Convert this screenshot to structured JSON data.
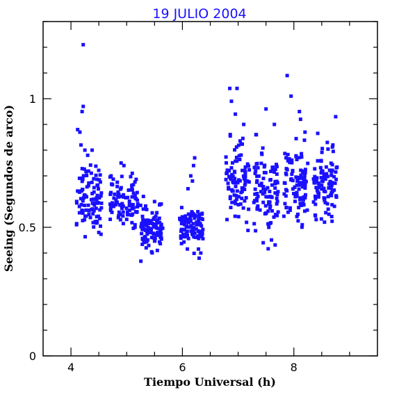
{
  "colors": {
    "marker": "#1a10ff",
    "title": "#1a10ff",
    "axis": "#000000",
    "background": "#ffffff"
  },
  "chart_data": {
    "type": "scatter",
    "title": "19 JULIO 2004",
    "xlabel": "Tiempo Universal (h)",
    "ylabel": "Seeing (Segundos de arco)",
    "xlim": [
      3.5,
      9.5
    ],
    "ylim": [
      0,
      1.3
    ],
    "xticks": [
      4,
      6,
      8
    ],
    "xtick_labels": [
      "4",
      "6",
      "8"
    ],
    "yticks": [
      0,
      0.5,
      1
    ],
    "ytick_labels": [
      "0",
      "0.5",
      "1"
    ],
    "grid": false,
    "legend": "none",
    "marker": "square",
    "clusters": [
      {
        "x_range": [
          4.1,
          4.55
        ],
        "y_mean": 0.62,
        "y_spread": 0.065,
        "n": 100,
        "extra": [
          [
            4.22,
            1.21
          ],
          [
            4.22,
            0.97
          ],
          [
            4.2,
            0.95
          ],
          [
            4.12,
            0.88
          ],
          [
            4.16,
            0.87
          ],
          [
            4.18,
            0.82
          ],
          [
            4.25,
            0.8
          ],
          [
            4.3,
            0.78
          ],
          [
            4.38,
            0.8
          ],
          [
            4.1,
            0.51
          ],
          [
            4.5,
            0.48
          ]
        ]
      },
      {
        "x_range": [
          4.7,
          5.2
        ],
        "y_mean": 0.6,
        "y_spread": 0.045,
        "n": 95,
        "extra": [
          [
            4.9,
            0.75
          ],
          [
            4.95,
            0.74
          ],
          [
            4.72,
            0.7
          ],
          [
            5.1,
            0.71
          ],
          [
            5.15,
            0.51
          ]
        ]
      },
      {
        "x_range": [
          5.25,
          5.65
        ],
        "y_mean": 0.49,
        "y_spread": 0.035,
        "n": 105,
        "extra": [
          [
            5.3,
            0.62
          ],
          [
            5.5,
            0.6
          ],
          [
            5.6,
            0.59
          ],
          [
            5.35,
            0.42
          ],
          [
            5.55,
            0.41
          ]
        ]
      },
      {
        "x_range": [
          5.95,
          6.38
        ],
        "y_mean": 0.5,
        "y_spread": 0.035,
        "n": 95,
        "extra": [
          [
            6.22,
            0.77
          ],
          [
            6.2,
            0.74
          ],
          [
            6.15,
            0.7
          ],
          [
            6.18,
            0.68
          ],
          [
            6.1,
            0.65
          ],
          [
            6.3,
            0.38
          ],
          [
            6.33,
            0.4
          ]
        ]
      },
      {
        "x_range": [
          6.78,
          7.2
        ],
        "y_mean": 0.68,
        "y_spread": 0.075,
        "n": 100,
        "extra": [
          [
            6.85,
            1.04
          ],
          [
            6.98,
            1.04
          ],
          [
            6.88,
            0.99
          ],
          [
            6.95,
            0.94
          ],
          [
            6.8,
            0.53
          ],
          [
            7.1,
            0.9
          ]
        ]
      },
      {
        "x_range": [
          7.28,
          7.72
        ],
        "y_mean": 0.63,
        "y_spread": 0.075,
        "n": 100,
        "extra": [
          [
            7.5,
            0.96
          ],
          [
            7.65,
            0.9
          ],
          [
            7.32,
            0.86
          ],
          [
            7.45,
            0.44
          ],
          [
            7.55,
            0.5
          ]
        ]
      },
      {
        "x_range": [
          7.82,
          8.25
        ],
        "y_mean": 0.67,
        "y_spread": 0.07,
        "n": 100,
        "extra": [
          [
            7.88,
            1.09
          ],
          [
            7.95,
            1.01
          ],
          [
            8.1,
            0.95
          ],
          [
            8.12,
            0.92
          ],
          [
            8.2,
            0.87
          ],
          [
            8.15,
            0.51
          ]
        ]
      },
      {
        "x_range": [
          8.35,
          8.78
        ],
        "y_mean": 0.66,
        "y_spread": 0.065,
        "n": 100,
        "extra": [
          [
            8.75,
            0.93
          ],
          [
            8.6,
            0.83
          ],
          [
            8.7,
            0.82
          ],
          [
            8.4,
            0.53
          ],
          [
            8.55,
            0.52
          ]
        ]
      }
    ]
  }
}
